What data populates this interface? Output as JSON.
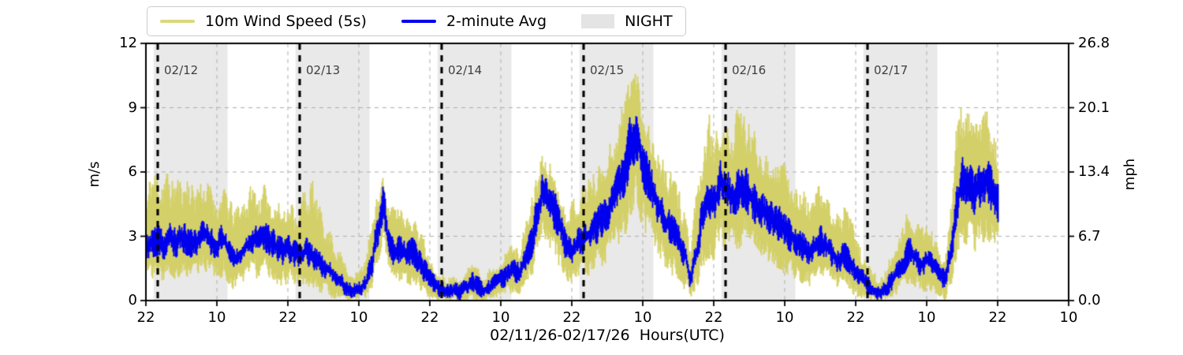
{
  "chart_data": {
    "type": "line",
    "title": "",
    "xlabel": "02/11/26-02/17/26  Hours(UTC)",
    "ylabel_left": "m/s",
    "ylabel_right": "mph",
    "x_unit": "hours since 02/11/26 22:00 UTC",
    "xlim": [
      0,
      156
    ],
    "ylim_left": [
      0,
      12
    ],
    "ylim_right": [
      0,
      26.8
    ],
    "grid": true,
    "legend_position": "top",
    "colors": {
      "wind_5s": "#d4d169",
      "avg_2min": "#0000ee",
      "night": "#e9e9e9",
      "legend_night_patch": "#e4e4e4",
      "grid": "#b3b3b3",
      "day_line": "#000000",
      "spine": "#000000",
      "day_label": "#3f3f3f"
    },
    "legend": [
      {
        "label": "10m Wind Speed (5s)",
        "type": "line",
        "color": "#dcd87c"
      },
      {
        "label": "2-minute Avg",
        "type": "line",
        "color": "#0000ee"
      },
      {
        "label": "NIGHT",
        "type": "patch",
        "color": "#e4e4e4"
      }
    ],
    "x_ticks": [
      {
        "hour": 0,
        "label": "22"
      },
      {
        "hour": 12,
        "label": "10"
      },
      {
        "hour": 24,
        "label": "22"
      },
      {
        "hour": 36,
        "label": "10"
      },
      {
        "hour": 48,
        "label": "22"
      },
      {
        "hour": 60,
        "label": "10"
      },
      {
        "hour": 72,
        "label": "22"
      },
      {
        "hour": 84,
        "label": "10"
      },
      {
        "hour": 96,
        "label": "22"
      },
      {
        "hour": 108,
        "label": "10"
      },
      {
        "hour": 120,
        "label": "22"
      },
      {
        "hour": 132,
        "label": "10"
      },
      {
        "hour": 144,
        "label": "22"
      },
      {
        "hour": 156,
        "label": "10"
      }
    ],
    "y_ticks_left": [
      {
        "v": 0,
        "label": "0"
      },
      {
        "v": 3,
        "label": "3"
      },
      {
        "v": 6,
        "label": "6"
      },
      {
        "v": 9,
        "label": "9"
      },
      {
        "v": 12,
        "label": "12"
      }
    ],
    "y_ticks_right": [
      {
        "v": 0,
        "label": "0.0"
      },
      {
        "v": 3,
        "label": "6.7"
      },
      {
        "v": 6,
        "label": "13.4"
      },
      {
        "v": 9,
        "label": "20.1"
      },
      {
        "v": 12,
        "label": "26.8"
      }
    ],
    "y_gridlines": [
      3,
      6,
      9
    ],
    "day_markers": [
      {
        "hour": 2,
        "label": "02/12"
      },
      {
        "hour": 26,
        "label": "02/13"
      },
      {
        "hour": 50,
        "label": "02/14"
      },
      {
        "hour": 74,
        "label": "02/15"
      },
      {
        "hour": 98,
        "label": "02/16"
      },
      {
        "hour": 122,
        "label": "02/17"
      }
    ],
    "night_bands": [
      {
        "start": 1.3,
        "end": 13.8
      },
      {
        "start": 25.3,
        "end": 37.8
      },
      {
        "start": 49.3,
        "end": 61.8
      },
      {
        "start": 73.3,
        "end": 85.8
      },
      {
        "start": 97.3,
        "end": 109.8
      },
      {
        "start": 121.3,
        "end": 133.8
      }
    ],
    "series": [
      {
        "name": "10m Wind Speed (5s)",
        "role": "envelope-hourly",
        "color": "#d4d169",
        "x_start_hour": 0,
        "x_step_hours": 1,
        "x_end_hour": 144,
        "upper": [
          4.8,
          6.2,
          5.8,
          6.3,
          5.6,
          5.9,
          5.5,
          6.1,
          5.4,
          5.8,
          5.5,
          5.2,
          4.9,
          5.3,
          4.6,
          4.2,
          4.7,
          5.1,
          5.4,
          5.0,
          5.3,
          4.9,
          4.6,
          4.4,
          4.7,
          4.3,
          4.5,
          5.3,
          5.5,
          4.6,
          3.9,
          3.4,
          2.8,
          2.2,
          1.6,
          1.3,
          1.4,
          2.0,
          3.2,
          4.8,
          5.6,
          4.6,
          4.2,
          4.5,
          4.3,
          4.1,
          3.6,
          2.8,
          2.1,
          1.5,
          1.2,
          1.0,
          1.1,
          1.0,
          1.3,
          1.8,
          1.5,
          1.2,
          1.4,
          1.7,
          2.0,
          2.3,
          2.6,
          2.5,
          3.4,
          4.6,
          5.8,
          6.8,
          6.4,
          6.0,
          5.2,
          4.4,
          4.6,
          5.0,
          5.5,
          5.8,
          6.2,
          6.6,
          7.2,
          7.8,
          8.6,
          9.6,
          11.0,
          10.6,
          9.2,
          8.2,
          7.4,
          6.8,
          6.2,
          5.8,
          5.2,
          4.4,
          2.6,
          4.8,
          6.6,
          8.7,
          7.6,
          8.2,
          8.0,
          8.2,
          8.8,
          8.6,
          8.2,
          7.8,
          7.4,
          7.2,
          7.0,
          6.8,
          6.2,
          5.8,
          5.7,
          5.2,
          4.8,
          5.0,
          5.3,
          4.8,
          4.4,
          4.0,
          4.3,
          3.8,
          3.0,
          2.2,
          1.6,
          1.2,
          1.0,
          1.4,
          2.0,
          2.8,
          3.6,
          4.3,
          3.8,
          3.4,
          3.6,
          3.2,
          2.5,
          2.2,
          4.6,
          8.0,
          9.2,
          8.6,
          8.2,
          8.4,
          8.8,
          8.4,
          7.6
        ],
        "lower": [
          0.8,
          1.0,
          1.2,
          0.9,
          1.2,
          1.0,
          1.3,
          1.1,
          1.0,
          1.2,
          1.4,
          1.1,
          0.9,
          1.2,
          0.7,
          0.5,
          0.7,
          0.9,
          1.2,
          1.0,
          1.2,
          1.1,
          0.8,
          0.7,
          0.8,
          0.6,
          0.5,
          0.6,
          0.5,
          0.4,
          0.3,
          0.2,
          0.1,
          0.0,
          0.0,
          0.0,
          0.0,
          0.1,
          0.4,
          1.5,
          2.6,
          1.2,
          0.8,
          0.9,
          0.7,
          0.8,
          0.5,
          0.3,
          0.1,
          0.0,
          0.0,
          0.0,
          0.0,
          0.0,
          0.0,
          0.1,
          0.0,
          0.0,
          0.0,
          0.1,
          0.2,
          0.3,
          0.4,
          0.3,
          0.6,
          1.0,
          1.8,
          2.6,
          2.2,
          2.0,
          1.5,
          1.0,
          0.8,
          1.0,
          1.1,
          1.2,
          1.4,
          1.6,
          1.9,
          2.2,
          2.6,
          3.1,
          4.0,
          4.4,
          3.3,
          2.8,
          2.3,
          1.9,
          1.5,
          1.2,
          1.0,
          0.6,
          0.1,
          0.6,
          1.6,
          2.0,
          1.9,
          2.7,
          2.4,
          2.2,
          2.4,
          2.6,
          2.3,
          2.0,
          1.8,
          1.7,
          1.6,
          1.5,
          1.3,
          1.1,
          1.0,
          0.8,
          0.7,
          0.9,
          1.0,
          0.8,
          0.6,
          0.5,
          0.6,
          0.4,
          0.2,
          0.1,
          0.0,
          0.0,
          0.0,
          0.0,
          0.1,
          0.3,
          0.5,
          0.8,
          0.6,
          0.4,
          0.5,
          0.4,
          0.2,
          0.1,
          0.7,
          1.9,
          2.8,
          2.5,
          2.3,
          2.5,
          2.7,
          2.4,
          2.0
        ]
      },
      {
        "name": "2-minute Avg",
        "role": "mean-hourly",
        "color": "#0000ee",
        "x_start_hour": 0,
        "x_step_hours": 1,
        "x_end_hour": 144,
        "values": [
          2.4,
          2.7,
          2.8,
          2.6,
          2.9,
          2.7,
          3.0,
          2.8,
          2.6,
          2.9,
          3.1,
          2.8,
          2.6,
          2.9,
          2.3,
          1.9,
          2.2,
          2.6,
          2.9,
          2.7,
          3.0,
          2.8,
          2.5,
          2.3,
          2.4,
          2.2,
          2.1,
          2.3,
          2.0,
          1.8,
          1.6,
          1.4,
          1.1,
          0.8,
          0.6,
          0.5,
          0.5,
          0.8,
          1.6,
          3.2,
          4.5,
          2.8,
          2.2,
          2.4,
          2.1,
          2.3,
          1.9,
          1.4,
          1.0,
          0.7,
          0.5,
          0.4,
          0.5,
          0.4,
          0.6,
          0.9,
          0.7,
          0.5,
          0.6,
          0.8,
          1.0,
          1.2,
          1.4,
          1.3,
          1.8,
          2.6,
          3.8,
          5.0,
          4.6,
          4.2,
          3.4,
          2.6,
          2.4,
          2.7,
          2.9,
          3.1,
          3.4,
          3.8,
          4.2,
          4.7,
          5.3,
          6.1,
          7.5,
          7.9,
          6.4,
          5.5,
          4.8,
          4.2,
          3.6,
          3.2,
          2.8,
          2.2,
          1.0,
          2.2,
          3.8,
          4.6,
          4.4,
          5.6,
          5.2,
          4.8,
          5.1,
          5.4,
          4.9,
          4.5,
          4.2,
          4.0,
          3.8,
          3.6,
          3.3,
          3.0,
          2.8,
          2.5,
          2.3,
          2.6,
          2.8,
          2.5,
          2.2,
          1.9,
          2.1,
          1.8,
          1.4,
          1.0,
          0.7,
          0.5,
          0.4,
          0.6,
          0.9,
          1.3,
          1.8,
          2.3,
          2.0,
          1.7,
          1.9,
          1.6,
          1.2,
          1.0,
          2.2,
          4.4,
          5.8,
          5.4,
          5.0,
          5.3,
          5.6,
          5.2,
          4.6
        ]
      }
    ]
  }
}
